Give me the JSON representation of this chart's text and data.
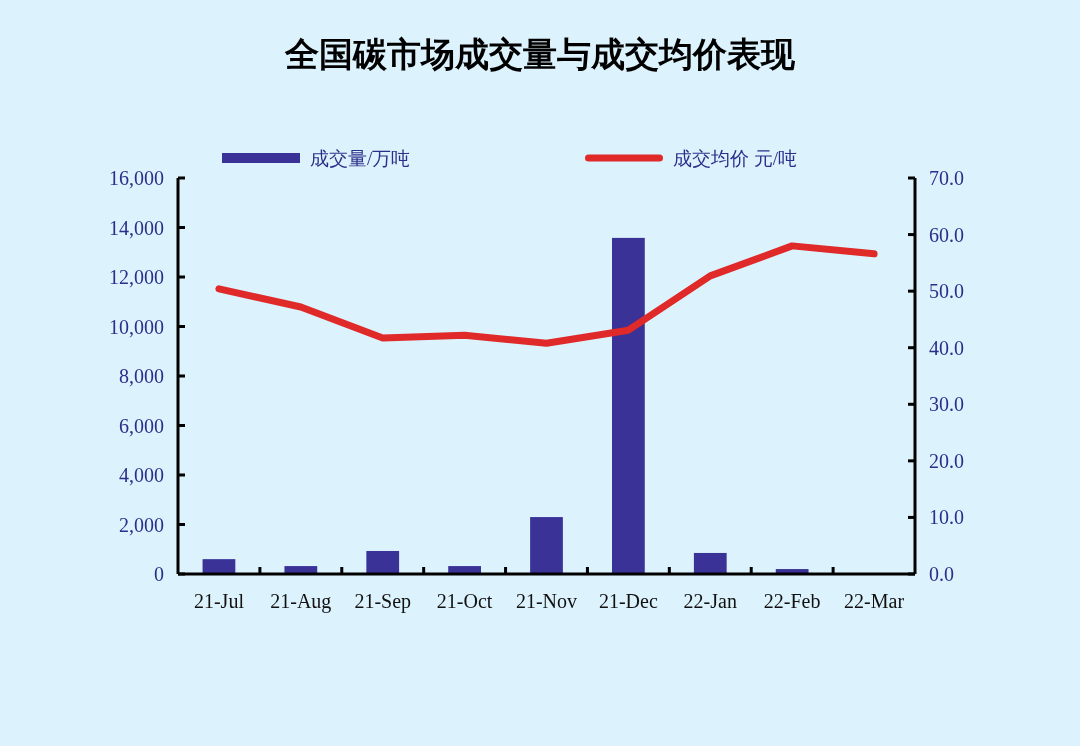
{
  "chart_data": {
    "type": "bar",
    "title": "全国碳市场成交量与成交均价表现",
    "categories": [
      "21-Jul",
      "21-Aug",
      "21-Sep",
      "21-Oct",
      "21-Nov",
      "21-Dec",
      "22-Jan",
      "22-Feb",
      "22-Mar"
    ],
    "series": [
      {
        "name": "成交量/万吨",
        "color": "#3a3296",
        "values": [
          600,
          320,
          930,
          320,
          2300,
          13580,
          850,
          200,
          null
        ]
      },
      {
        "name": "成交均价 元/吨",
        "type": "line",
        "axis": "y2",
        "color": "#e02a2a",
        "values": [
          50.4,
          47.2,
          41.7,
          42.2,
          40.8,
          43.1,
          52.7,
          58.0,
          56.6
        ]
      }
    ],
    "ylim": [
      0,
      16000
    ],
    "yticks": [
      {
        "value": 0,
        "label": "0"
      },
      {
        "value": 2000,
        "label": "2,000"
      },
      {
        "value": 4000,
        "label": "4,000"
      },
      {
        "value": 6000,
        "label": "6,000"
      },
      {
        "value": 8000,
        "label": "8,000"
      },
      {
        "value": 10000,
        "label": "10,000"
      },
      {
        "value": 12000,
        "label": "12,000"
      },
      {
        "value": 14000,
        "label": "14,000"
      },
      {
        "value": 16000,
        "label": "16,000"
      }
    ],
    "y2lim": [
      0,
      70
    ],
    "y2ticks": [
      {
        "value": 0,
        "label": "0.0"
      },
      {
        "value": 10,
        "label": "10.0"
      },
      {
        "value": 20,
        "label": "20.0"
      },
      {
        "value": 30,
        "label": "30.0"
      },
      {
        "value": 40,
        "label": "40.0"
      },
      {
        "value": 50,
        "label": "50.0"
      },
      {
        "value": 60,
        "label": "60.0"
      },
      {
        "value": 70,
        "label": "70.0"
      }
    ],
    "legend": "top",
    "grid": false
  }
}
